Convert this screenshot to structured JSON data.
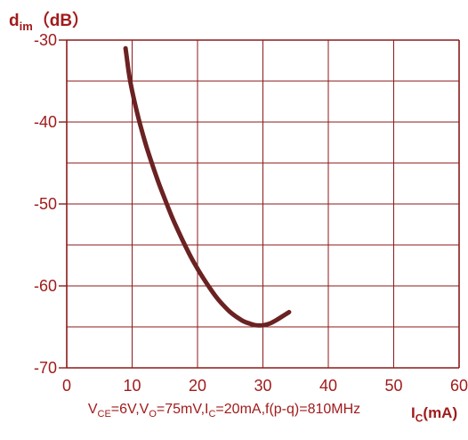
{
  "chart_data": {
    "type": "line",
    "ylabel_main": "d",
    "ylabel_sub": "im",
    "ylabel_unit": "（dB）",
    "xlabel_main": "I",
    "xlabel_sub": "C",
    "xlabel_unit": "(mA)",
    "xlim": [
      0,
      60
    ],
    "ylim": [
      -70,
      -30
    ],
    "xticks": [
      "0",
      "10",
      "20",
      "30",
      "40",
      "50",
      "60"
    ],
    "yticks": [
      "-30",
      "-40",
      "-50",
      "-60",
      "-70"
    ],
    "grid": true,
    "line_color": "#6b2222",
    "series": [
      {
        "x": [
          9.0,
          9.5,
          10,
          11,
          12,
          13,
          14,
          15,
          16,
          17,
          18,
          19,
          20,
          21,
          22,
          23,
          24,
          25,
          26,
          27,
          28,
          29,
          30,
          31,
          32,
          33,
          34
        ],
        "values": [
          -31.0,
          -34.0,
          -36.2,
          -39.6,
          -42.5,
          -45.0,
          -47.3,
          -49.4,
          -51.4,
          -53.2,
          -54.9,
          -56.5,
          -57.9,
          -59.2,
          -60.4,
          -61.5,
          -62.4,
          -63.2,
          -63.8,
          -64.3,
          -64.6,
          -64.8,
          -64.8,
          -64.6,
          -64.2,
          -63.7,
          -63.2
        ]
      }
    ]
  },
  "note": {
    "p1": "V",
    "p1sub": "CE",
    "p2": "=6V,V",
    "p2sub": "O",
    "p3": "=75mV,I",
    "p3sub": "C",
    "p4": "=20mA,f(p-q)=810MHz"
  }
}
